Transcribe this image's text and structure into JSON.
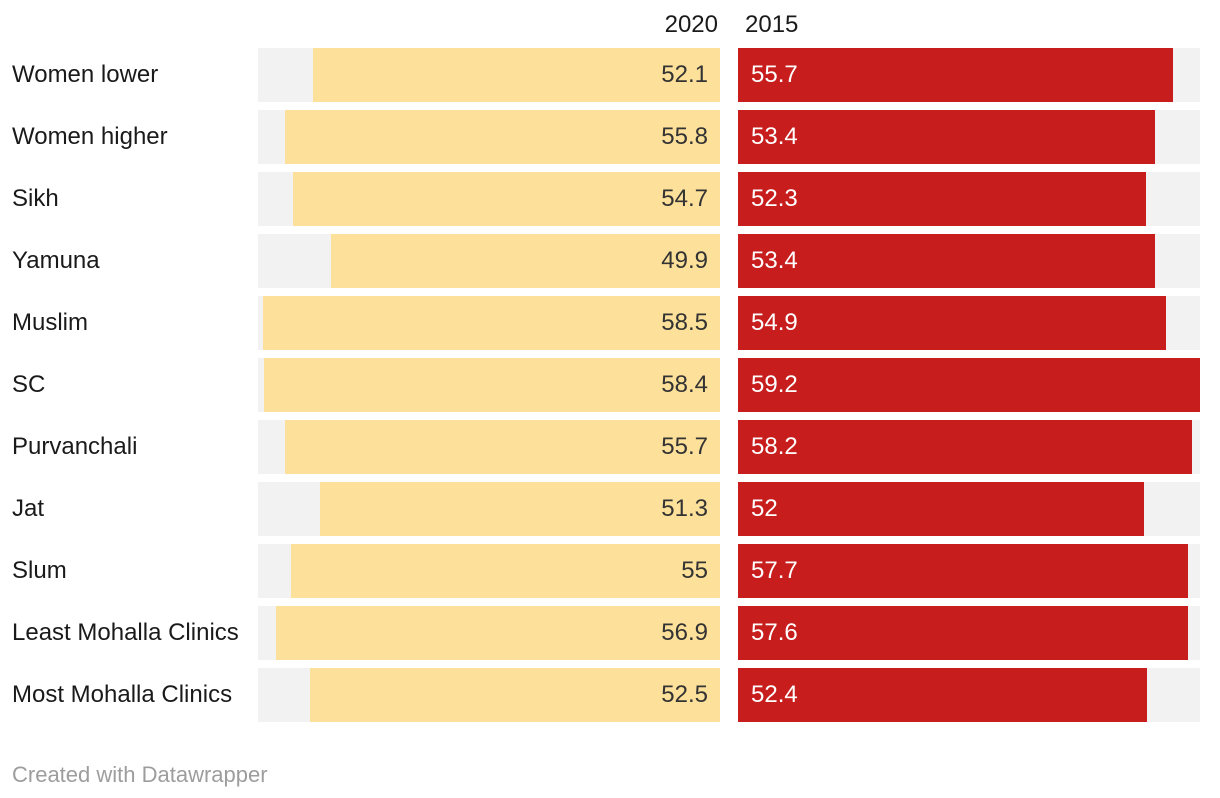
{
  "header": {
    "col2020": "2020",
    "col2015": "2015"
  },
  "footer": {
    "credit": "Created with Datawrapper"
  },
  "colors": {
    "bar_2020": "#fde19a",
    "bar_2015": "#c71e1d",
    "track": "#f2f2f2",
    "label_text": "#1a1a1a",
    "value_on_yellow": "#333333",
    "value_on_red": "#ffffff",
    "footer_text": "#9d9d9d",
    "background": "#ffffff"
  },
  "chart_data": {
    "type": "bar",
    "orientation": "horizontal",
    "layout": "split-columns, 2020 bars right-aligned growing left, 2015 bars left-aligned growing right, gray full-range track behind each bar",
    "scale_max": 59.2,
    "categories": [
      "Women lower",
      "Women higher",
      "Sikh",
      "Yamuna",
      "Muslim",
      "SC",
      "Purvanchali",
      "Jat",
      "Slum",
      "Least Mohalla Clinics",
      "Most Mohalla Clinics"
    ],
    "series": [
      {
        "name": "2020",
        "values": [
          52.1,
          55.8,
          54.7,
          49.9,
          58.5,
          58.4,
          55.7,
          51.3,
          55,
          56.9,
          52.5
        ],
        "labels": [
          "52.1",
          "55.8",
          "54.7",
          "49.9",
          "58.5",
          "58.4",
          "55.7",
          "51.3",
          "55",
          "56.9",
          "52.5"
        ]
      },
      {
        "name": "2015",
        "values": [
          55.7,
          53.4,
          52.3,
          53.4,
          54.9,
          59.2,
          58.2,
          52,
          57.7,
          57.6,
          52.4
        ],
        "labels": [
          "55.7",
          "53.4",
          "52.3",
          "53.4",
          "54.9",
          "59.2",
          "58.2",
          "52",
          "57.7",
          "57.6",
          "52.4"
        ]
      }
    ],
    "title": "",
    "xlabel": "",
    "ylabel": "",
    "grid": false,
    "legend_position": "column-headers-top"
  }
}
